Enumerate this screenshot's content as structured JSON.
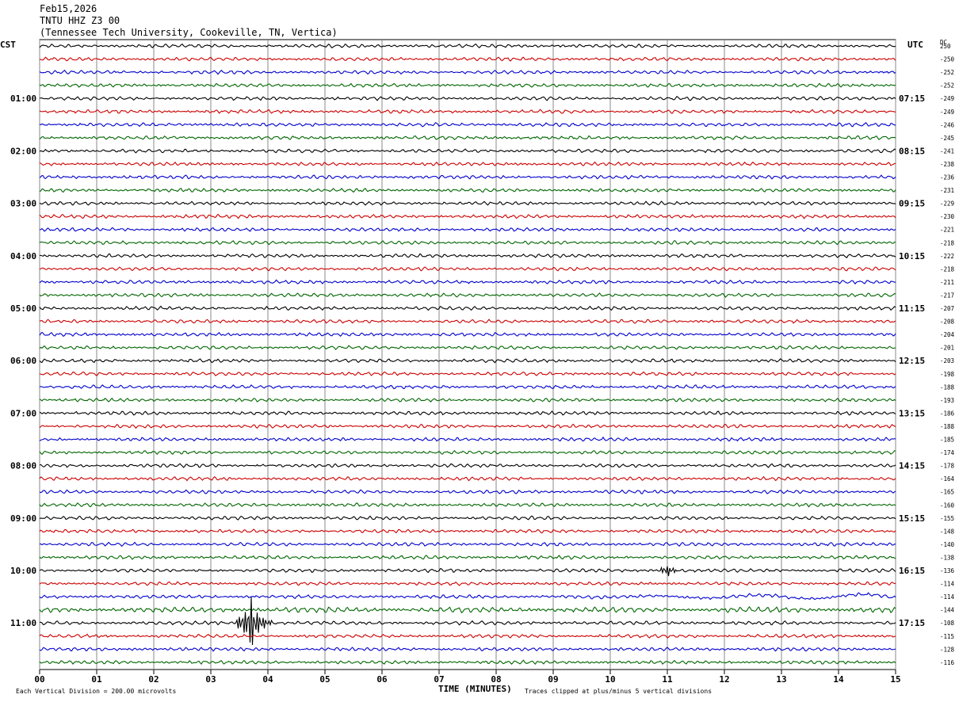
{
  "header": {
    "date": "Feb15,2026",
    "station": "TNTU HHZ Z3 00",
    "location": "(Tennessee Tech University, Cookeville, TN, Vertica)"
  },
  "left_timezone": "CST",
  "right_timezone": "UTC",
  "dc_label": "DC",
  "footer": {
    "scale_note": "Each Vertical Division =  200.00 microvolts",
    "clip_note": "Traces clipped at plus/minus 5 vertical divisions"
  },
  "chart_data": {
    "type": "line",
    "xlabel": "TIME (MINUTES)",
    "xlim": [
      0,
      15
    ],
    "x_ticks": [
      "00",
      "01",
      "02",
      "03",
      "04",
      "05",
      "06",
      "07",
      "08",
      "09",
      "10",
      "11",
      "12",
      "13",
      "14",
      "15"
    ],
    "left_hour_labels": [
      "01:00",
      "02:00",
      "03:00",
      "04:00",
      "05:00",
      "06:00",
      "07:00",
      "08:00",
      "09:00",
      "10:00",
      "11:00"
    ],
    "right_hour_labels": [
      "07:15",
      "08:15",
      "09:15",
      "10:15",
      "11:15",
      "12:15",
      "13:15",
      "14:15",
      "15:15",
      "16:15",
      "17:15"
    ],
    "trace_colors": [
      "#000000",
      "#cc0000",
      "#0000cc",
      "#006600"
    ],
    "dc_offsets": [
      "250",
      "-250",
      "-252",
      "-252",
      "-249",
      "-249",
      "-246",
      "-245",
      "-241",
      "-238",
      "-236",
      "-231",
      "-229",
      "-230",
      "-221",
      "-218",
      "-222",
      "-218",
      "-211",
      "-217",
      "-207",
      "-208",
      "-204",
      "-201",
      "-203",
      "-198",
      "-188",
      "-193",
      "-186",
      "-188",
      "-185",
      "-174",
      "-178",
      "-164",
      "-165",
      "-160",
      "-155",
      "-148",
      "-140",
      "-138",
      "-136",
      "-114",
      "-114",
      "-144",
      "-108",
      "-115",
      "-128",
      "-116"
    ],
    "events": [
      {
        "trace": 44,
        "minute": 3.7,
        "description": "large burst"
      },
      {
        "trace": 40,
        "minute": 11.0,
        "description": "small burst"
      }
    ]
  }
}
